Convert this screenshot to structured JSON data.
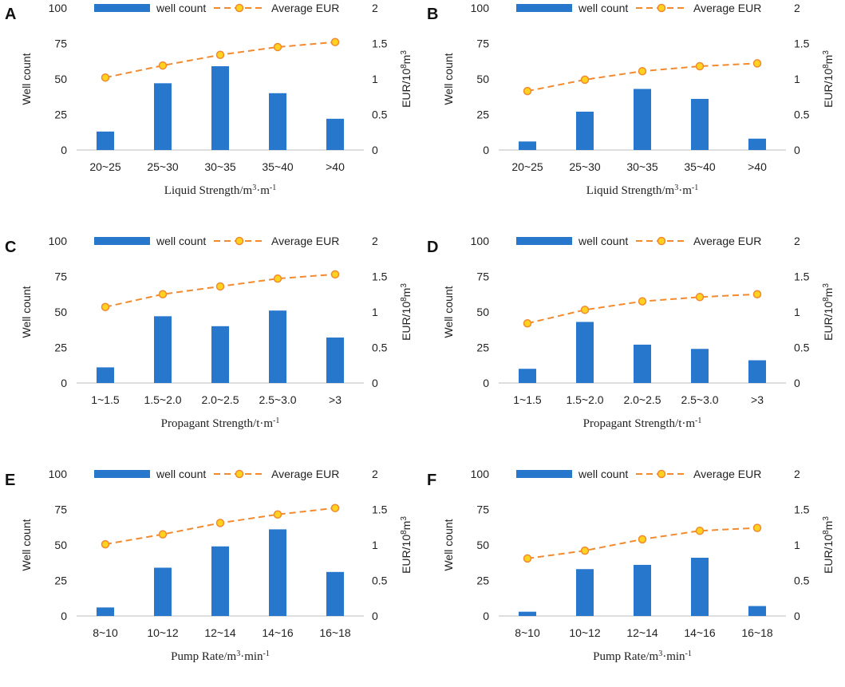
{
  "figure": {
    "name": "six-panel-well-count-vs-eur"
  },
  "legend": {
    "bar_label": "well count",
    "line_label": "Average EUR"
  },
  "axes": {
    "left_label": "Well count",
    "right_label_base": "EUR/10",
    "right_label_sup1": "8",
    "right_label_mid": "m",
    "right_label_sup2": "3",
    "left_ticks": [
      "0",
      "25",
      "50",
      "75",
      "100"
    ],
    "right_ticks": [
      "0",
      "0.5",
      "1",
      "1.5",
      "2"
    ]
  },
  "colors": {
    "bar": "#2777cd",
    "line": "#f28a30",
    "marker_fill": "#ffd21f",
    "marker_stroke": "#f28a30"
  },
  "chart_data": [
    {
      "panel": "A",
      "type": "bar+line",
      "xlabel_main": "Liquid Strength/m",
      "xlabel_sup1": "3",
      "xlabel_mid": "·m",
      "xlabel_sup2": "-1",
      "categories": [
        "20~25",
        "25~30",
        "30~35",
        "35~40",
        ">40"
      ],
      "series": [
        {
          "name": "well count",
          "axis": "left",
          "values": [
            13,
            47,
            59,
            40,
            22
          ]
        },
        {
          "name": "Average EUR",
          "axis": "right",
          "values": [
            1.02,
            1.19,
            1.34,
            1.45,
            1.52
          ]
        }
      ],
      "ylim_left": [
        0,
        100
      ],
      "ylim_right": [
        0,
        2
      ]
    },
    {
      "panel": "B",
      "type": "bar+line",
      "xlabel_main": "Liquid Strength/m",
      "xlabel_sup1": "3",
      "xlabel_mid": "·m",
      "xlabel_sup2": "-1",
      "categories": [
        "20~25",
        "25~30",
        "30~35",
        "35~40",
        ">40"
      ],
      "series": [
        {
          "name": "well count",
          "axis": "left",
          "values": [
            6,
            27,
            43,
            36,
            8
          ]
        },
        {
          "name": "Average EUR",
          "axis": "right",
          "values": [
            0.83,
            0.99,
            1.11,
            1.18,
            1.22
          ]
        }
      ],
      "ylim_left": [
        0,
        100
      ],
      "ylim_right": [
        0,
        2
      ]
    },
    {
      "panel": "C",
      "type": "bar+line",
      "xlabel_main": "Propagant Strength/t·m",
      "xlabel_sup1": "",
      "xlabel_mid": "",
      "xlabel_sup2": "-1",
      "categories": [
        "1~1.5",
        "1.5~2.0",
        "2.0~2.5",
        "2.5~3.0",
        ">3"
      ],
      "series": [
        {
          "name": "well count",
          "axis": "left",
          "values": [
            11,
            47,
            40,
            51,
            32
          ]
        },
        {
          "name": "Average EUR",
          "axis": "right",
          "values": [
            1.07,
            1.25,
            1.36,
            1.47,
            1.53
          ]
        }
      ],
      "ylim_left": [
        0,
        100
      ],
      "ylim_right": [
        0,
        2
      ]
    },
    {
      "panel": "D",
      "type": "bar+line",
      "xlabel_main": "Propagant Strength/t·m",
      "xlabel_sup1": "",
      "xlabel_mid": "",
      "xlabel_sup2": "-1",
      "categories": [
        "1~1.5",
        "1.5~2.0",
        "2.0~2.5",
        "2.5~3.0",
        ">3"
      ],
      "series": [
        {
          "name": "well count",
          "axis": "left",
          "values": [
            10,
            43,
            27,
            24,
            16
          ]
        },
        {
          "name": "Average EUR",
          "axis": "right",
          "values": [
            0.84,
            1.03,
            1.15,
            1.21,
            1.25
          ]
        }
      ],
      "ylim_left": [
        0,
        100
      ],
      "ylim_right": [
        0,
        2
      ]
    },
    {
      "panel": "E",
      "type": "bar+line",
      "xlabel_main": "Pump Rate/m",
      "xlabel_sup1": "3",
      "xlabel_mid": "·min",
      "xlabel_sup2": "-1",
      "categories": [
        "8~10",
        "10~12",
        "12~14",
        "14~16",
        "16~18"
      ],
      "series": [
        {
          "name": "well count",
          "axis": "left",
          "values": [
            6,
            34,
            49,
            61,
            31
          ]
        },
        {
          "name": "Average EUR",
          "axis": "right",
          "values": [
            1.01,
            1.15,
            1.31,
            1.43,
            1.52
          ]
        }
      ],
      "ylim_left": [
        0,
        100
      ],
      "ylim_right": [
        0,
        2
      ]
    },
    {
      "panel": "F",
      "type": "bar+line",
      "xlabel_main": "Pump Rate/m",
      "xlabel_sup1": "3",
      "xlabel_mid": "·min",
      "xlabel_sup2": "-1",
      "categories": [
        "8~10",
        "10~12",
        "12~14",
        "14~16",
        "16~18"
      ],
      "series": [
        {
          "name": "well count",
          "axis": "left",
          "values": [
            3,
            33,
            36,
            41,
            7
          ]
        },
        {
          "name": "Average EUR",
          "axis": "right",
          "values": [
            0.81,
            0.92,
            1.08,
            1.2,
            1.24
          ]
        }
      ],
      "ylim_left": [
        0,
        100
      ],
      "ylim_right": [
        0,
        2
      ]
    }
  ]
}
